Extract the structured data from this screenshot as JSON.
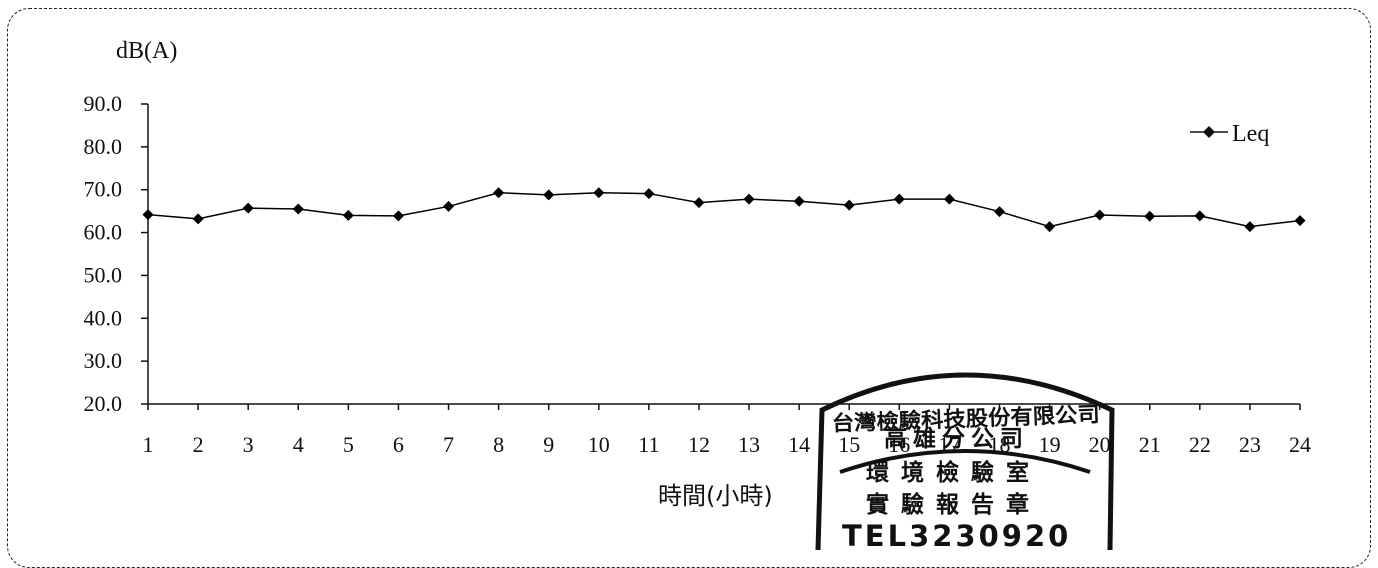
{
  "chart_data": {
    "type": "line",
    "ylabel": "dB(A)",
    "xlabel": "時間(小時)",
    "categories": [
      "1",
      "2",
      "3",
      "4",
      "5",
      "6",
      "7",
      "8",
      "9",
      "10",
      "11",
      "12",
      "13",
      "14",
      "15",
      "16",
      "17",
      "18",
      "19",
      "20",
      "21",
      "22",
      "23",
      "24"
    ],
    "yticks": [
      "20.0",
      "30.0",
      "40.0",
      "50.0",
      "60.0",
      "70.0",
      "80.0",
      "90.0"
    ],
    "ylim": [
      20,
      90
    ],
    "grid": false,
    "legend_position": "top-right",
    "series": [
      {
        "name": "Leq",
        "color": "#000000",
        "marker": "diamond",
        "values": [
          64.2,
          63.2,
          65.7,
          65.5,
          64.0,
          63.9,
          66.1,
          69.3,
          68.8,
          69.3,
          69.1,
          67.0,
          67.8,
          67.3,
          66.4,
          67.8,
          67.8,
          64.9,
          61.4,
          64.1,
          63.8,
          63.9,
          61.4,
          62.8
        ]
      }
    ]
  },
  "stamp": {
    "line1": "台灣檢驗科技股份有限公司",
    "line2": "高雄分公司",
    "line3": "環境檢驗室",
    "line4": "實驗報告章",
    "line5": "TEL3230920"
  }
}
